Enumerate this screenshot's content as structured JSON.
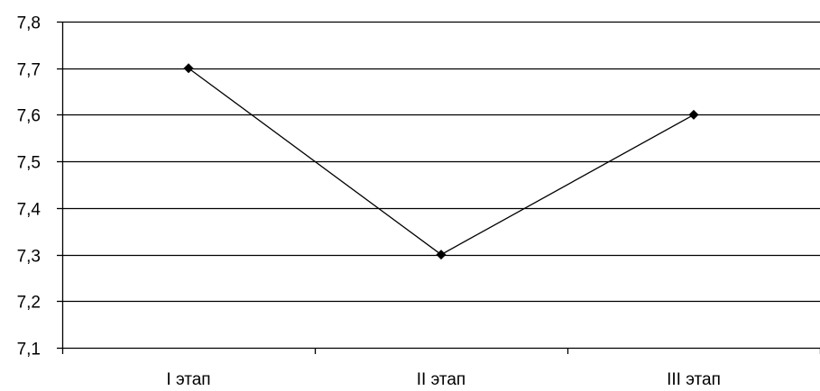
{
  "chart_data": {
    "type": "line",
    "title": "",
    "xlabel": "",
    "ylabel": "",
    "categories": [
      "I этап",
      "II этап",
      "III этап"
    ],
    "series": [
      {
        "values": [
          7.7,
          7.3,
          7.6
        ],
        "marker": "diamond",
        "color": "#000000"
      }
    ],
    "ylim": [
      7.1,
      7.8
    ],
    "yticks": [
      7.1,
      7.2,
      7.3,
      7.4,
      7.5,
      7.6,
      7.7,
      7.8
    ],
    "ytick_labels": [
      "7,1",
      "7,2",
      "7,3",
      "7,4",
      "7,5",
      "7,6",
      "7,7",
      "7,8"
    ],
    "grid": "horizontal",
    "legend": "none"
  }
}
